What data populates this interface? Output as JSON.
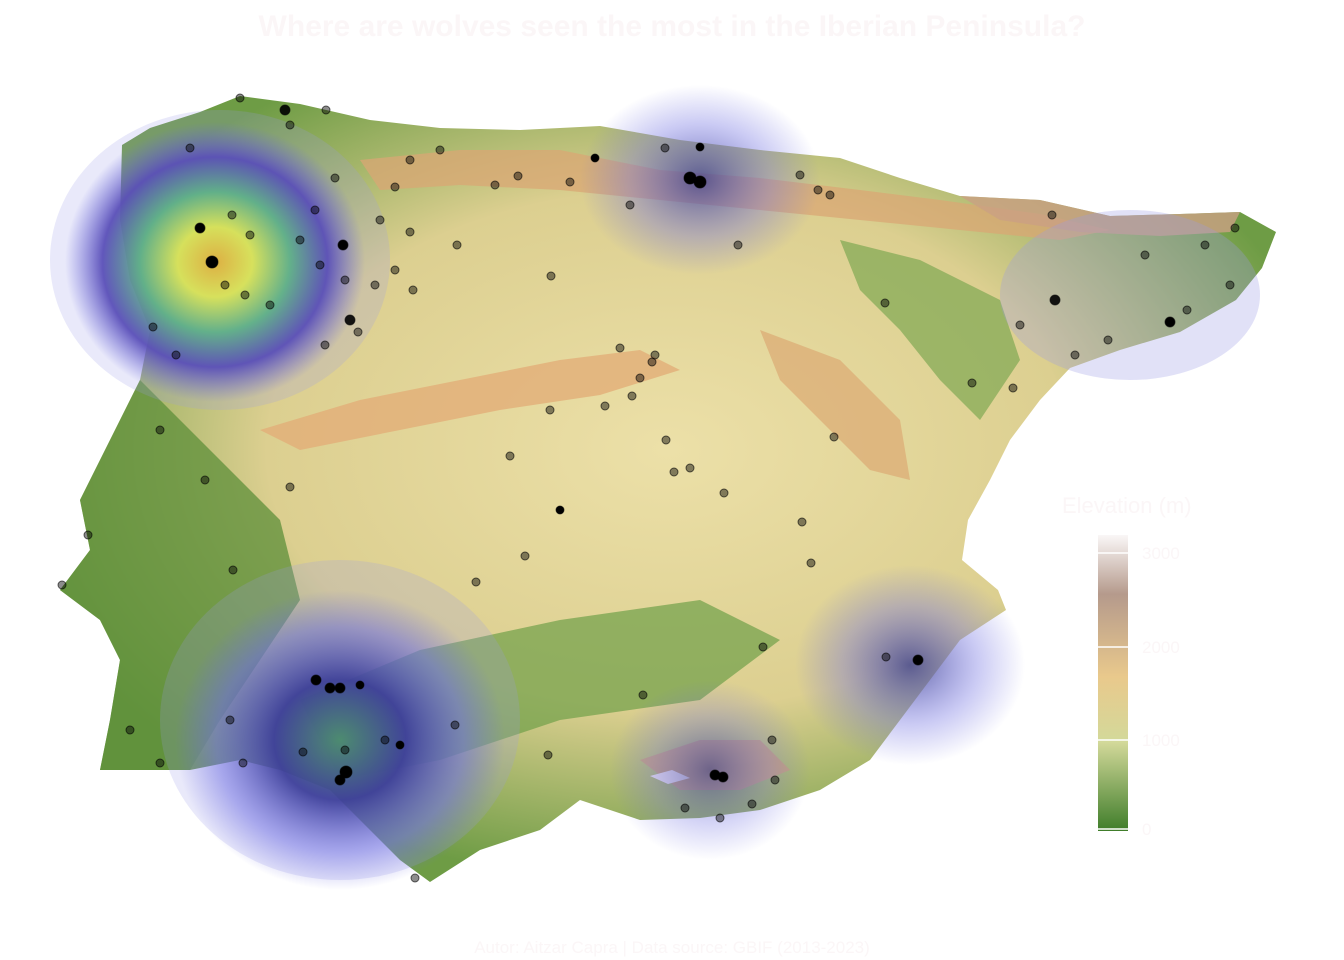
{
  "title": "Where are wolves seen the most in the Iberian Peninsula?",
  "caption": "Autor: Aitzar Capra | Data source: GBIF (2013-2023)",
  "legend": {
    "title": "Elevation (m)",
    "ticks": [
      "3000",
      "2000",
      "1000",
      "0"
    ]
  },
  "colors": {
    "lowland": "#5b8f3a",
    "midland": "#e6dca2",
    "highland": "#d6a96f",
    "peak": "#f6f1f2",
    "density_low": "#6b6be0",
    "density_high": "#d9e35a",
    "sighting": "#000000"
  },
  "layers": [
    "elevation-relief",
    "sighting-density",
    "sightings"
  ]
}
